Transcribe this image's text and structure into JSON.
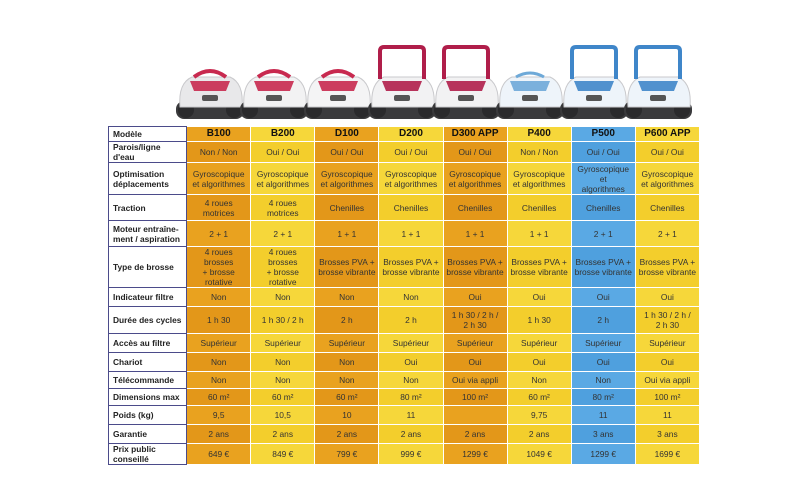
{
  "colors": {
    "yellow": "#f6d73a",
    "orange": "#e9a21f",
    "blue": "#5aa9e4"
  },
  "models": [
    {
      "name": "B100",
      "color": "orange",
      "body": "#e8e8ea",
      "accent": "#c8294f",
      "tone": "red",
      "handle": false
    },
    {
      "name": "B200",
      "color": "yellow",
      "body": "#f2f2f3",
      "accent": "#c8294f",
      "tone": "red",
      "handle": false
    },
    {
      "name": "D100",
      "color": "orange",
      "body": "#f4f4f5",
      "accent": "#c8294f",
      "tone": "red",
      "handle": false
    },
    {
      "name": "D200",
      "color": "yellow",
      "body": "#f2f2f3",
      "accent": "#b01e4a",
      "tone": "red",
      "handle": true
    },
    {
      "name": "D300 APP",
      "color": "orange",
      "body": "#f2f2f3",
      "accent": "#b01e4a",
      "tone": "red",
      "handle": true
    },
    {
      "name": "P400",
      "color": "yellow",
      "body": "#eef4fa",
      "accent": "#6ea9d8",
      "tone": "blue",
      "handle": false
    },
    {
      "name": "P500",
      "color": "blue",
      "body": "#eef4fa",
      "accent": "#3f86c9",
      "tone": "blue",
      "handle": true
    },
    {
      "name": "P600 APP",
      "color": "yellow",
      "body": "#eef4fa",
      "accent": "#3f86c9",
      "tone": "blue",
      "handle": true
    }
  ],
  "rows": [
    {
      "label": [
        "Modèle"
      ],
      "height": 15,
      "header": true,
      "cells": [
        [
          "B100"
        ],
        [
          "B200"
        ],
        [
          "D100"
        ],
        [
          "D200"
        ],
        [
          "D300 APP"
        ],
        [
          "P400"
        ],
        [
          "P500"
        ],
        [
          "P600 APP"
        ]
      ]
    },
    {
      "label": [
        "Parois/ligne d'eau"
      ],
      "height": 19,
      "cells": [
        [
          "Non / Non"
        ],
        [
          "Oui / Oui"
        ],
        [
          "Oui / Oui"
        ],
        [
          "Oui / Oui"
        ],
        [
          "Oui / Oui"
        ],
        [
          "Non / Non"
        ],
        [
          "Oui / Oui"
        ],
        [
          "Oui / Oui"
        ]
      ]
    },
    {
      "label": [
        "Optimisation",
        "déplacements"
      ],
      "height": 32,
      "cells": [
        [
          "Gyroscopique",
          "et algorithmes"
        ],
        [
          "Gyroscopique",
          "et algorithmes"
        ],
        [
          "Gyroscopique",
          "et algorithmes"
        ],
        [
          "Gyroscopique",
          "et algorithmes"
        ],
        [
          "Gyroscopique",
          "et algorithmes"
        ],
        [
          "Gyroscopique",
          "et algorithmes"
        ],
        [
          "Gyroscopique et",
          "algorithmes"
        ],
        [
          "Gyroscopique",
          "et algorithmes"
        ]
      ]
    },
    {
      "label": [
        "Traction"
      ],
      "height": 26,
      "cells": [
        [
          "4 roues",
          "motrices"
        ],
        [
          "4 roues",
          "motrices"
        ],
        [
          "Chenilles"
        ],
        [
          "Chenilles"
        ],
        [
          "Chenilles"
        ],
        [
          "Chenilles"
        ],
        [
          "Chenilles"
        ],
        [
          "Chenilles"
        ]
      ]
    },
    {
      "label": [
        "Moteur entraîne-",
        "ment / aspiration"
      ],
      "height": 26,
      "cells": [
        [
          "2 + 1"
        ],
        [
          "2 + 1"
        ],
        [
          "1 + 1"
        ],
        [
          "1 + 1"
        ],
        [
          "1 + 1"
        ],
        [
          "1 + 1"
        ],
        [
          "2 + 1"
        ],
        [
          "2 + 1"
        ]
      ]
    },
    {
      "label": [
        "Type de brosse"
      ],
      "height": 27,
      "cells": [
        [
          "4 roues brosses",
          "+ brosse rotative"
        ],
        [
          "4 roues brosses",
          "+ brosse rotative"
        ],
        [
          "Brosses PVA +",
          "brosse vibrante"
        ],
        [
          "Brosses PVA +",
          "brosse vibrante"
        ],
        [
          "Brosses PVA +",
          "brosse vibrante"
        ],
        [
          "Brosses PVA +",
          "brosse vibrante"
        ],
        [
          "Brosses PVA +",
          "brosse vibrante"
        ],
        [
          "Brosses PVA +",
          "brosse vibrante"
        ]
      ]
    },
    {
      "label": [
        "Indicateur filtre"
      ],
      "height": 19,
      "cells": [
        [
          "Non"
        ],
        [
          "Non"
        ],
        [
          "Non"
        ],
        [
          "Non"
        ],
        [
          "Oui"
        ],
        [
          "Oui"
        ],
        [
          "Oui"
        ],
        [
          "Oui"
        ]
      ]
    },
    {
      "label": [
        "Durée des cycles"
      ],
      "height": 27,
      "cells": [
        [
          "1 h 30"
        ],
        [
          "1 h 30 /  2 h"
        ],
        [
          "2 h"
        ],
        [
          "2 h"
        ],
        [
          "1 h 30 /  2 h /",
          "2 h 30"
        ],
        [
          "1 h 30"
        ],
        [
          "2 h"
        ],
        [
          "1 h 30 /  2 h /",
          "2 h 30"
        ]
      ]
    },
    {
      "label": [
        "Accès au filtre"
      ],
      "height": 19,
      "cells": [
        [
          "Supérieur"
        ],
        [
          "Supérieur"
        ],
        [
          "Supérieur"
        ],
        [
          "Supérieur"
        ],
        [
          "Supérieur"
        ],
        [
          "Supérieur"
        ],
        [
          "Supérieur"
        ],
        [
          "Supérieur"
        ]
      ]
    },
    {
      "label": [
        "Chariot"
      ],
      "height": 19,
      "cells": [
        [
          "Non"
        ],
        [
          "Non"
        ],
        [
          "Non"
        ],
        [
          "Oui"
        ],
        [
          "Oui"
        ],
        [
          "Oui"
        ],
        [
          "Oui"
        ],
        [
          "Oui"
        ]
      ]
    },
    {
      "label": [
        "Télécommande"
      ],
      "height": 17,
      "cells": [
        [
          "Non"
        ],
        [
          "Non"
        ],
        [
          "Non"
        ],
        [
          "Non"
        ],
        [
          "Oui via appli"
        ],
        [
          "Non"
        ],
        [
          "Non"
        ],
        [
          "Oui via appli"
        ]
      ]
    },
    {
      "label": [
        "Dimensions max"
      ],
      "height": 17,
      "cells": [
        [
          "60 m²"
        ],
        [
          "60 m²"
        ],
        [
          "60 m²"
        ],
        [
          "80 m²"
        ],
        [
          "100 m²"
        ],
        [
          "60 m²"
        ],
        [
          "80 m²"
        ],
        [
          "100 m²"
        ]
      ]
    },
    {
      "label": [
        "Poids (kg)"
      ],
      "height": 19,
      "cells": [
        [
          "9,5"
        ],
        [
          "10,5"
        ],
        [
          "10"
        ],
        [
          "11"
        ],
        [
          ""
        ],
        [
          "9,75"
        ],
        [
          "11"
        ],
        [
          "11"
        ]
      ]
    },
    {
      "label": [
        "Garantie"
      ],
      "height": 19,
      "cells": [
        [
          "2 ans"
        ],
        [
          "2 ans"
        ],
        [
          "2 ans"
        ],
        [
          "2 ans"
        ],
        [
          "2 ans"
        ],
        [
          "2 ans"
        ],
        [
          "3 ans"
        ],
        [
          "3 ans"
        ]
      ]
    },
    {
      "label": [
        "Prix public conseillé"
      ],
      "height": 19,
      "cells": [
        [
          "649 €"
        ],
        [
          "849 €"
        ],
        [
          "799 €"
        ],
        [
          "999 €"
        ],
        [
          "1299 €"
        ],
        [
          "1049 €"
        ],
        [
          "1299 €"
        ],
        [
          "1699 €"
        ]
      ]
    }
  ]
}
